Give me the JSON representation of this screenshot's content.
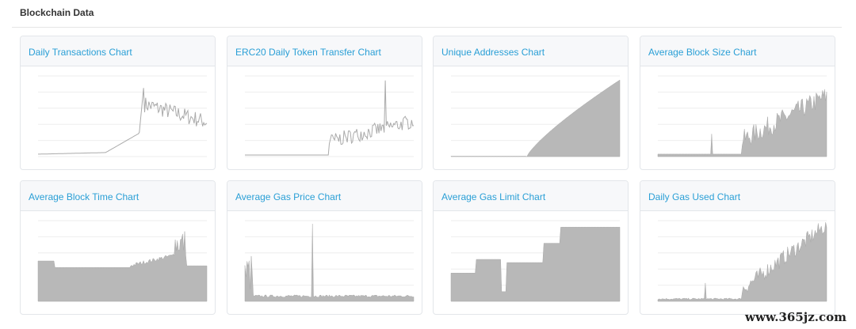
{
  "header": {
    "title": "Blockchain Data"
  },
  "cards": [
    {
      "title": "Daily Transactions Chart"
    },
    {
      "title": "ERC20 Daily Token Transfer Chart"
    },
    {
      "title": "Unique Addresses Chart"
    },
    {
      "title": "Average Block Size Chart"
    },
    {
      "title": "Average Block Time Chart"
    },
    {
      "title": "Average Gas Price Chart"
    },
    {
      "title": "Average Gas Limit Chart"
    },
    {
      "title": "Daily Gas Used Chart"
    }
  ],
  "watermark": "www.365jz.com"
}
